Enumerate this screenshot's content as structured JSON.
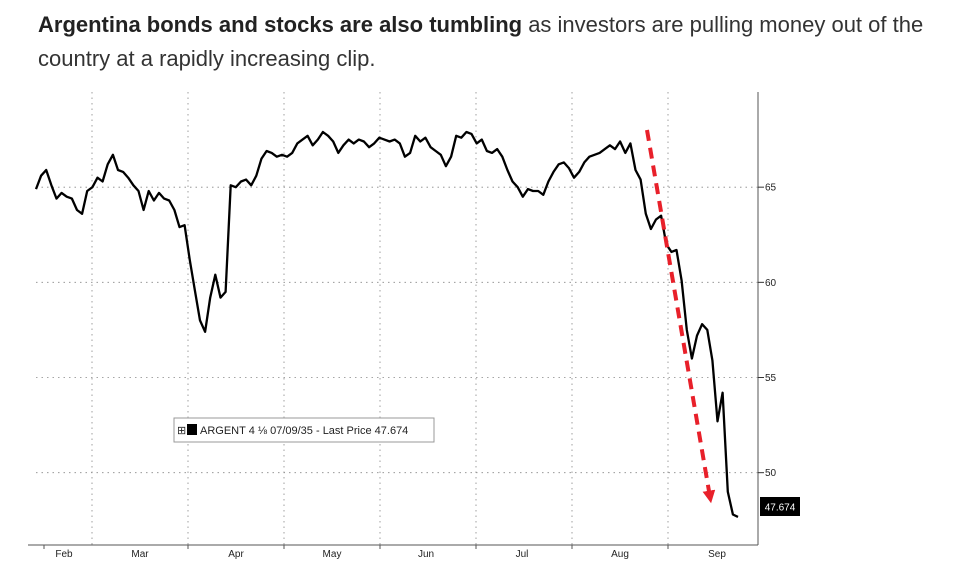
{
  "headline": {
    "bold": "Argentina bonds and stocks are also tumbling",
    "rest": " as investors are pulling money out of the country at a rapidly increasing clip."
  },
  "chart_data": {
    "type": "line",
    "title": "",
    "series": [
      {
        "name": "ARGENT 4 ⅛ 07/09/35 - Last Price 47.674",
        "color": "#000000",
        "values": [
          64.9,
          65.6,
          65.9,
          65.1,
          64.4,
          64.7,
          64.5,
          64.4,
          63.8,
          63.6,
          64.8,
          65.0,
          65.5,
          65.3,
          66.2,
          66.7,
          65.9,
          65.8,
          65.5,
          65.1,
          64.8,
          63.8,
          64.8,
          64.3,
          64.7,
          64.4,
          64.3,
          63.8,
          62.9,
          63.0,
          61.2,
          59.6,
          58.0,
          57.4,
          59.2,
          60.4,
          59.2,
          59.5,
          65.1,
          65.0,
          65.3,
          65.4,
          65.1,
          65.6,
          66.5,
          66.9,
          66.8,
          66.6,
          66.7,
          66.6,
          66.8,
          67.3,
          67.5,
          67.7,
          67.2,
          67.5,
          67.9,
          67.7,
          67.4,
          66.8,
          67.2,
          67.5,
          67.3,
          67.5,
          67.4,
          67.1,
          67.3,
          67.6,
          67.5,
          67.4,
          67.5,
          67.3,
          66.6,
          66.8,
          67.7,
          67.4,
          67.6,
          67.1,
          66.9,
          66.7,
          66.1,
          66.6,
          67.7,
          67.6,
          67.9,
          67.8,
          67.3,
          67.5,
          66.9,
          66.8,
          67.0,
          66.6,
          65.9,
          65.3,
          65.0,
          64.5,
          64.9,
          64.8,
          64.8,
          64.6,
          65.3,
          65.8,
          66.2,
          66.3,
          66.0,
          65.5,
          65.8,
          66.3,
          66.6,
          66.7,
          66.8,
          67.0,
          67.2,
          67.0,
          67.4,
          66.8,
          67.3,
          65.9,
          65.4,
          63.6,
          62.8,
          63.3,
          63.5,
          62.0,
          61.6,
          61.7,
          60.1,
          57.5,
          56.0,
          57.2,
          57.8,
          57.5,
          55.9,
          52.7,
          54.2,
          49.0,
          47.8,
          47.674
        ]
      }
    ],
    "xlabels": [
      "Feb",
      "Mar",
      "Apr",
      "May",
      "Jun",
      "Jul",
      "Aug",
      "Sep"
    ],
    "yticks": [
      65,
      60,
      55,
      50
    ],
    "ylim": [
      46.2,
      70.0
    ],
    "last_price": "47.674",
    "annotation": "downward trend arrow from early August to September",
    "legend": {
      "icon_text": "⊞",
      "label": "ARGENT 4 ⅛  07/09/35 - Last Price 47.674"
    },
    "colors": {
      "line": "#000000",
      "arrow": "#e8202a",
      "grid": "#888888",
      "last_box": "#000000"
    }
  }
}
